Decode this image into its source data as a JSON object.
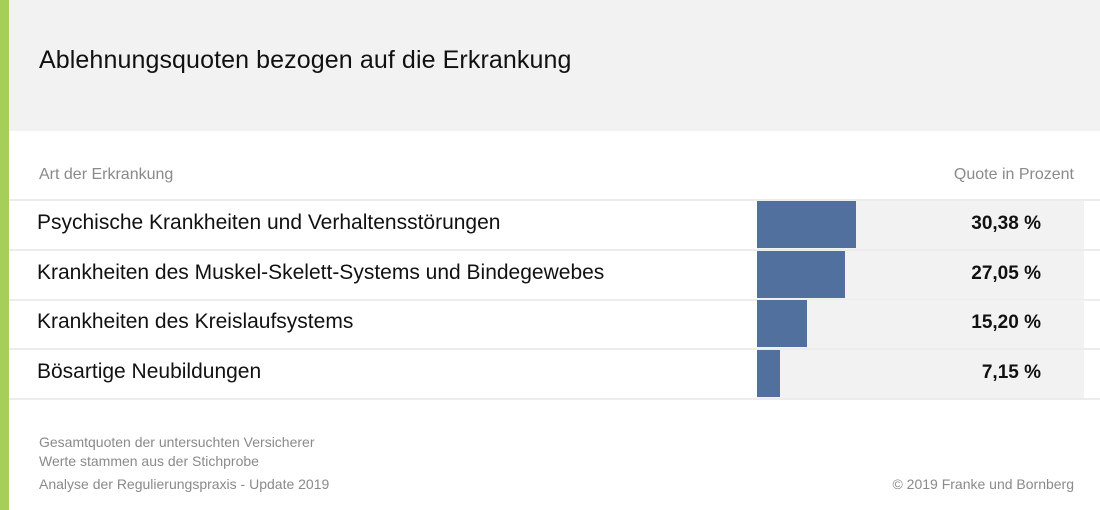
{
  "colors": {
    "accent": "#a6cf5a",
    "bar": "#52709e",
    "header_bg": "#f2f2f2",
    "track_bg": "#f2f2f2"
  },
  "chart_data": {
    "type": "bar",
    "orientation": "horizontal",
    "title": "Ablehnungsquoten bezogen auf die Erkrankung",
    "column_headers": {
      "category": "Art der Erkrankung",
      "value": "Quote in Prozent"
    },
    "categories": [
      "Psychische Krankheiten und Verhaltensstörungen",
      "Krankheiten des Muskel-Skelett-Systems und Bindegewebes",
      "Krankheiten des Kreislaufsystems",
      "Bösartige Neubildungen"
    ],
    "values": [
      30.38,
      27.05,
      15.2,
      7.15
    ],
    "value_labels": [
      "30,38 %",
      "27,05 %",
      "15,20 %",
      "7,15 %"
    ],
    "xlim": [
      0,
      100
    ],
    "unit": "%"
  },
  "footer": {
    "note1": "Gesamtquoten der untersuchten Versicherer",
    "note2": "Werte stammen aus der Stichprobe",
    "source": "Analyse der Regulierungspraxis - Update 2019",
    "copyright": "© 2019 Franke und Bornberg"
  }
}
